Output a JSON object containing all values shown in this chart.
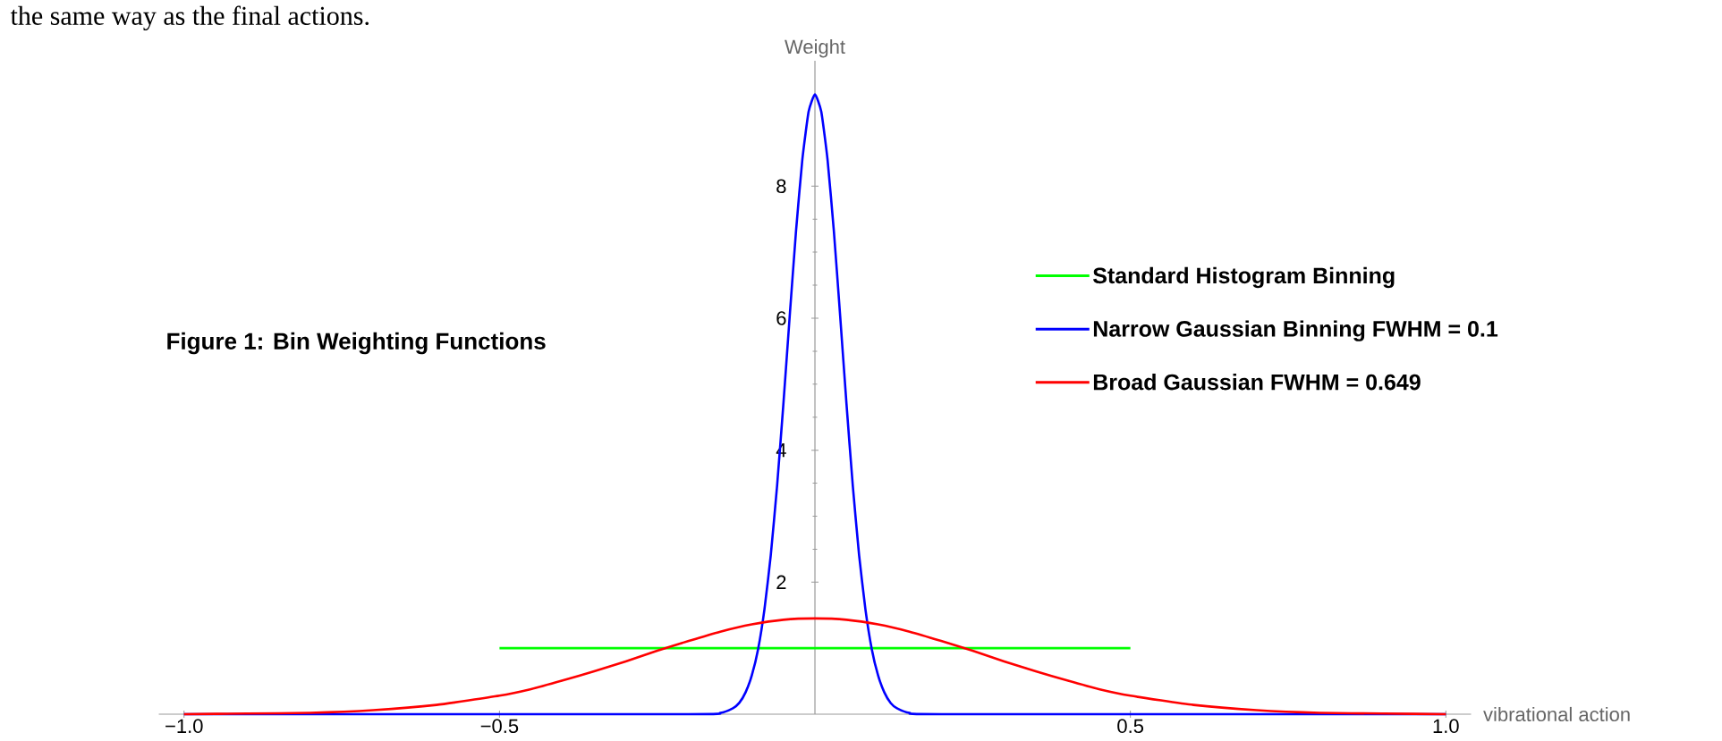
{
  "chart_data": {
    "type": "line",
    "title": "Figure 1: Bin Weighting Functions",
    "xlabel": "vibrational action",
    "ylabel": "Weight",
    "annotations": [
      "the same way as the final actions."
    ],
    "xlim": [
      -1.04,
      1.04
    ],
    "ylim": [
      0,
      9.9
    ],
    "xticks": [
      {
        "value": -1.0,
        "label": "−1.0"
      },
      {
        "value": -0.5,
        "label": "−0.5"
      },
      {
        "value": 0.5,
        "label": "0.5"
      },
      {
        "value": 1.0,
        "label": "1.0"
      }
    ],
    "yticks": [
      2,
      4,
      6,
      8
    ],
    "legend": "right",
    "series": [
      {
        "name": "Standard Histogram Binning",
        "color": "#00ff00",
        "x": [
          -0.5,
          0.5
        ],
        "values": [
          1,
          1
        ]
      },
      {
        "name": "Narrow Gaussian Binning FWHM = 0.1",
        "color": "#0000ff",
        "x": [
          -1.0,
          -0.2,
          -0.15,
          -0.13,
          -0.12,
          -0.11,
          -0.1,
          -0.09,
          -0.08,
          -0.07,
          -0.06,
          -0.05,
          -0.04,
          -0.03,
          -0.02,
          -0.01,
          0,
          0.01,
          0.02,
          0.03,
          0.04,
          0.05,
          0.06,
          0.07,
          0.08,
          0.09,
          0.1,
          0.11,
          0.12,
          0.13,
          0.15,
          0.2,
          1.0
        ],
        "values": [
          0,
          0,
          0.02,
          0.09,
          0.17,
          0.33,
          0.59,
          0.99,
          1.59,
          2.41,
          3.46,
          4.7,
          6.03,
          7.32,
          8.4,
          9.13,
          9.39,
          9.13,
          8.4,
          7.32,
          6.03,
          4.7,
          3.46,
          2.41,
          1.59,
          0.99,
          0.59,
          0.33,
          0.17,
          0.09,
          0.02,
          0,
          0
        ]
      },
      {
        "name": "Broad Gaussian  FWHM = 0.649",
        "color": "#ff0000",
        "x": [
          -1.0,
          -0.9,
          -0.8,
          -0.7,
          -0.6,
          -0.5,
          -0.45,
          -0.4,
          -0.35,
          -0.3,
          -0.25,
          -0.2,
          -0.15,
          -0.1,
          -0.05,
          0,
          0.05,
          0.1,
          0.15,
          0.2,
          0.25,
          0.3,
          0.35,
          0.4,
          0.45,
          0.5,
          0.6,
          0.7,
          0.8,
          0.9,
          1.0
        ],
        "values": [
          0,
          0.01,
          0.02,
          0.06,
          0.14,
          0.28,
          0.38,
          0.51,
          0.65,
          0.8,
          0.96,
          1.11,
          1.25,
          1.36,
          1.43,
          1.45,
          1.43,
          1.36,
          1.25,
          1.11,
          0.96,
          0.8,
          0.65,
          0.51,
          0.38,
          0.28,
          0.14,
          0.06,
          0.02,
          0.01,
          0
        ]
      }
    ]
  }
}
